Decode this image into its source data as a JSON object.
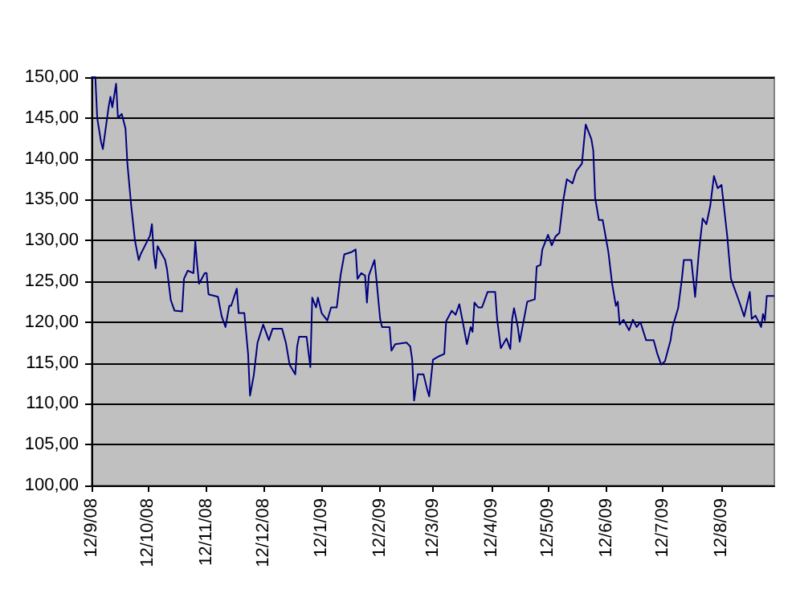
{
  "chart_data": {
    "type": "line",
    "grid": "y",
    "marker": "none",
    "line_style": "solid",
    "xlim": [
      "2008-09-12",
      "2009-09-09"
    ],
    "xticks": [
      {
        "value": "2008-09-12",
        "label": "12/9/08"
      },
      {
        "value": "2008-10-12",
        "label": "12/10/08"
      },
      {
        "value": "2008-11-12",
        "label": "12/11/08"
      },
      {
        "value": "2008-12-12",
        "label": "12/12/08"
      },
      {
        "value": "2009-01-12",
        "label": "12/1/09"
      },
      {
        "value": "2009-02-12",
        "label": "12/2/09"
      },
      {
        "value": "2009-03-12",
        "label": "12/3/09"
      },
      {
        "value": "2009-04-12",
        "label": "12/4/09"
      },
      {
        "value": "2009-05-12",
        "label": "12/5/09"
      },
      {
        "value": "2009-06-12",
        "label": "12/6/09"
      },
      {
        "value": "2009-07-12",
        "label": "12/7/09"
      },
      {
        "value": "2009-08-12",
        "label": "12/8/09"
      }
    ],
    "ylim": [
      100,
      150
    ],
    "yticks": [
      {
        "value": 100,
        "label": "100,00"
      },
      {
        "value": 105,
        "label": "105,00"
      },
      {
        "value": 110,
        "label": "110,00"
      },
      {
        "value": 115,
        "label": "115,00"
      },
      {
        "value": 120,
        "label": "120,00"
      },
      {
        "value": 125,
        "label": "125,00"
      },
      {
        "value": 130,
        "label": "130,00"
      },
      {
        "value": 135,
        "label": "135,00"
      },
      {
        "value": 140,
        "label": "140,00"
      },
      {
        "value": 145,
        "label": "145,00"
      },
      {
        "value": 150,
        "label": "150,00"
      }
    ],
    "series": [
      {
        "color": "#000080",
        "x": [
          "2008-09-12",
          "2008-09-14",
          "2008-09-15",
          "2008-09-17",
          "2008-09-18",
          "2008-09-21",
          "2008-09-22",
          "2008-09-23",
          "2008-09-25",
          "2008-09-26",
          "2008-09-28",
          "2008-09-30",
          "2008-10-01",
          "2008-10-03",
          "2008-10-05",
          "2008-10-07",
          "2008-10-08",
          "2008-10-13",
          "2008-10-14",
          "2008-10-15",
          "2008-10-16",
          "2008-10-17",
          "2008-10-21",
          "2008-10-22",
          "2008-10-24",
          "2008-10-26",
          "2008-10-30",
          "2008-10-31",
          "2008-11-02",
          "2008-11-05",
          "2008-11-06",
          "2008-11-07",
          "2008-11-08",
          "2008-11-11",
          "2008-11-12",
          "2008-11-13",
          "2008-11-18",
          "2008-11-20",
          "2008-11-22",
          "2008-11-24",
          "2008-11-25",
          "2008-11-28",
          "2008-11-29",
          "2008-12-02",
          "2008-12-04",
          "2008-12-05",
          "2008-12-07",
          "2008-12-09",
          "2008-12-12",
          "2008-12-15",
          "2008-12-17",
          "2008-12-22",
          "2008-12-24",
          "2008-12-26",
          "2008-12-29",
          "2008-12-30",
          "2008-12-31",
          "2009-01-04",
          "2009-01-06",
          "2009-01-07",
          "2009-01-09",
          "2009-01-10",
          "2009-01-12",
          "2009-01-15",
          "2009-01-17",
          "2009-01-20",
          "2009-01-22",
          "2009-01-24",
          "2009-01-28",
          "2009-01-30",
          "2009-01-31",
          "2009-02-02",
          "2009-02-04",
          "2009-02-05",
          "2009-02-06",
          "2009-02-09",
          "2009-02-10",
          "2009-02-12",
          "2009-02-13",
          "2009-02-17",
          "2009-02-18",
          "2009-02-20",
          "2009-02-26",
          "2009-02-28",
          "2009-03-01",
          "2009-03-02",
          "2009-03-04",
          "2009-03-07",
          "2009-03-09",
          "2009-03-10",
          "2009-03-12",
          "2009-03-15",
          "2009-03-18",
          "2009-03-19",
          "2009-03-22",
          "2009-03-24",
          "2009-03-26",
          "2009-03-28",
          "2009-03-30",
          "2009-04-01",
          "2009-04-02",
          "2009-04-03",
          "2009-04-05",
          "2009-04-07",
          "2009-04-10",
          "2009-04-14",
          "2009-04-15",
          "2009-04-17",
          "2009-04-20",
          "2009-04-22",
          "2009-04-23",
          "2009-04-24",
          "2009-04-26",
          "2009-04-27",
          "2009-05-01",
          "2009-05-05",
          "2009-05-06",
          "2009-05-08",
          "2009-05-09",
          "2009-05-12",
          "2009-05-14",
          "2009-05-16",
          "2009-05-18",
          "2009-05-20",
          "2009-05-22",
          "2009-05-25",
          "2009-05-27",
          "2009-05-30",
          "2009-05-31",
          "2009-06-01",
          "2009-06-04",
          "2009-06-05",
          "2009-06-06",
          "2009-06-08",
          "2009-06-10",
          "2009-06-11",
          "2009-06-13",
          "2009-06-15",
          "2009-06-17",
          "2009-06-18",
          "2009-06-19",
          "2009-06-21",
          "2009-06-24",
          "2009-06-26",
          "2009-06-28",
          "2009-06-30",
          "2009-07-03",
          "2009-07-07",
          "2009-07-09",
          "2009-07-11",
          "2009-07-13",
          "2009-07-16",
          "2009-07-17",
          "2009-07-20",
          "2009-07-22",
          "2009-07-23",
          "2009-07-27",
          "2009-07-29",
          "2009-07-31",
          "2009-08-02",
          "2009-08-04",
          "2009-08-06",
          "2009-08-08",
          "2009-08-10",
          "2009-08-12",
          "2009-08-15",
          "2009-08-17",
          "2009-08-20",
          "2009-08-22",
          "2009-08-24",
          "2009-08-27",
          "2009-08-28",
          "2009-08-30",
          "2009-09-02",
          "2009-09-03",
          "2009-09-04",
          "2009-09-05",
          "2009-09-09"
        ],
        "values": [
          150.0,
          150.0,
          145.0,
          142.1,
          141.2,
          146.3,
          147.6,
          146.3,
          149.2,
          145.0,
          145.5,
          143.7,
          139.4,
          134.3,
          130.0,
          127.6,
          128.3,
          130.6,
          132.0,
          128.3,
          126.6,
          129.3,
          127.6,
          126.5,
          122.7,
          121.4,
          121.3,
          125.3,
          126.3,
          126.0,
          129.9,
          127.0,
          124.7,
          126.0,
          126.0,
          123.4,
          123.1,
          120.7,
          119.4,
          122.0,
          122.0,
          124.1,
          121.1,
          121.1,
          116.1,
          111.0,
          113.5,
          117.5,
          119.7,
          117.8,
          119.2,
          119.2,
          117.5,
          114.8,
          113.6,
          117.0,
          118.2,
          118.2,
          114.5,
          123.0,
          121.8,
          123.0,
          121.1,
          120.2,
          121.8,
          121.8,
          125.7,
          128.3,
          128.6,
          128.9,
          125.3,
          126.0,
          125.7,
          122.4,
          125.7,
          127.6,
          125.3,
          120.4,
          119.4,
          119.4,
          116.5,
          117.3,
          117.5,
          117.0,
          115.4,
          110.4,
          113.6,
          113.6,
          111.7,
          110.9,
          115.4,
          115.8,
          116.1,
          120.1,
          121.4,
          120.9,
          122.2,
          119.8,
          117.3,
          119.4,
          118.8,
          122.4,
          121.8,
          121.8,
          123.7,
          123.7,
          120.4,
          116.8,
          118.0,
          116.7,
          120.4,
          121.7,
          119.4,
          117.6,
          122.5,
          122.8,
          126.8,
          127.0,
          128.9,
          130.7,
          129.4,
          130.5,
          130.9,
          134.8,
          137.5,
          137.0,
          138.5,
          139.4,
          141.9,
          144.2,
          142.4,
          141.0,
          135.2,
          132.5,
          132.5,
          131.2,
          128.6,
          124.7,
          122.0,
          122.5,
          119.7,
          120.3,
          119.0,
          120.3,
          119.4,
          120.0,
          117.8,
          117.8,
          116.1,
          114.8,
          115.2,
          117.8,
          119.4,
          121.7,
          125.3,
          127.6,
          127.6,
          123.1,
          128.6,
          132.7,
          132.0,
          134.2,
          137.9,
          136.4,
          136.8,
          130.6,
          125.3,
          123.4,
          122.1,
          120.7,
          123.7,
          120.4,
          120.8,
          119.4,
          121.0,
          120.2,
          123.2,
          123.2
        ]
      }
    ]
  }
}
